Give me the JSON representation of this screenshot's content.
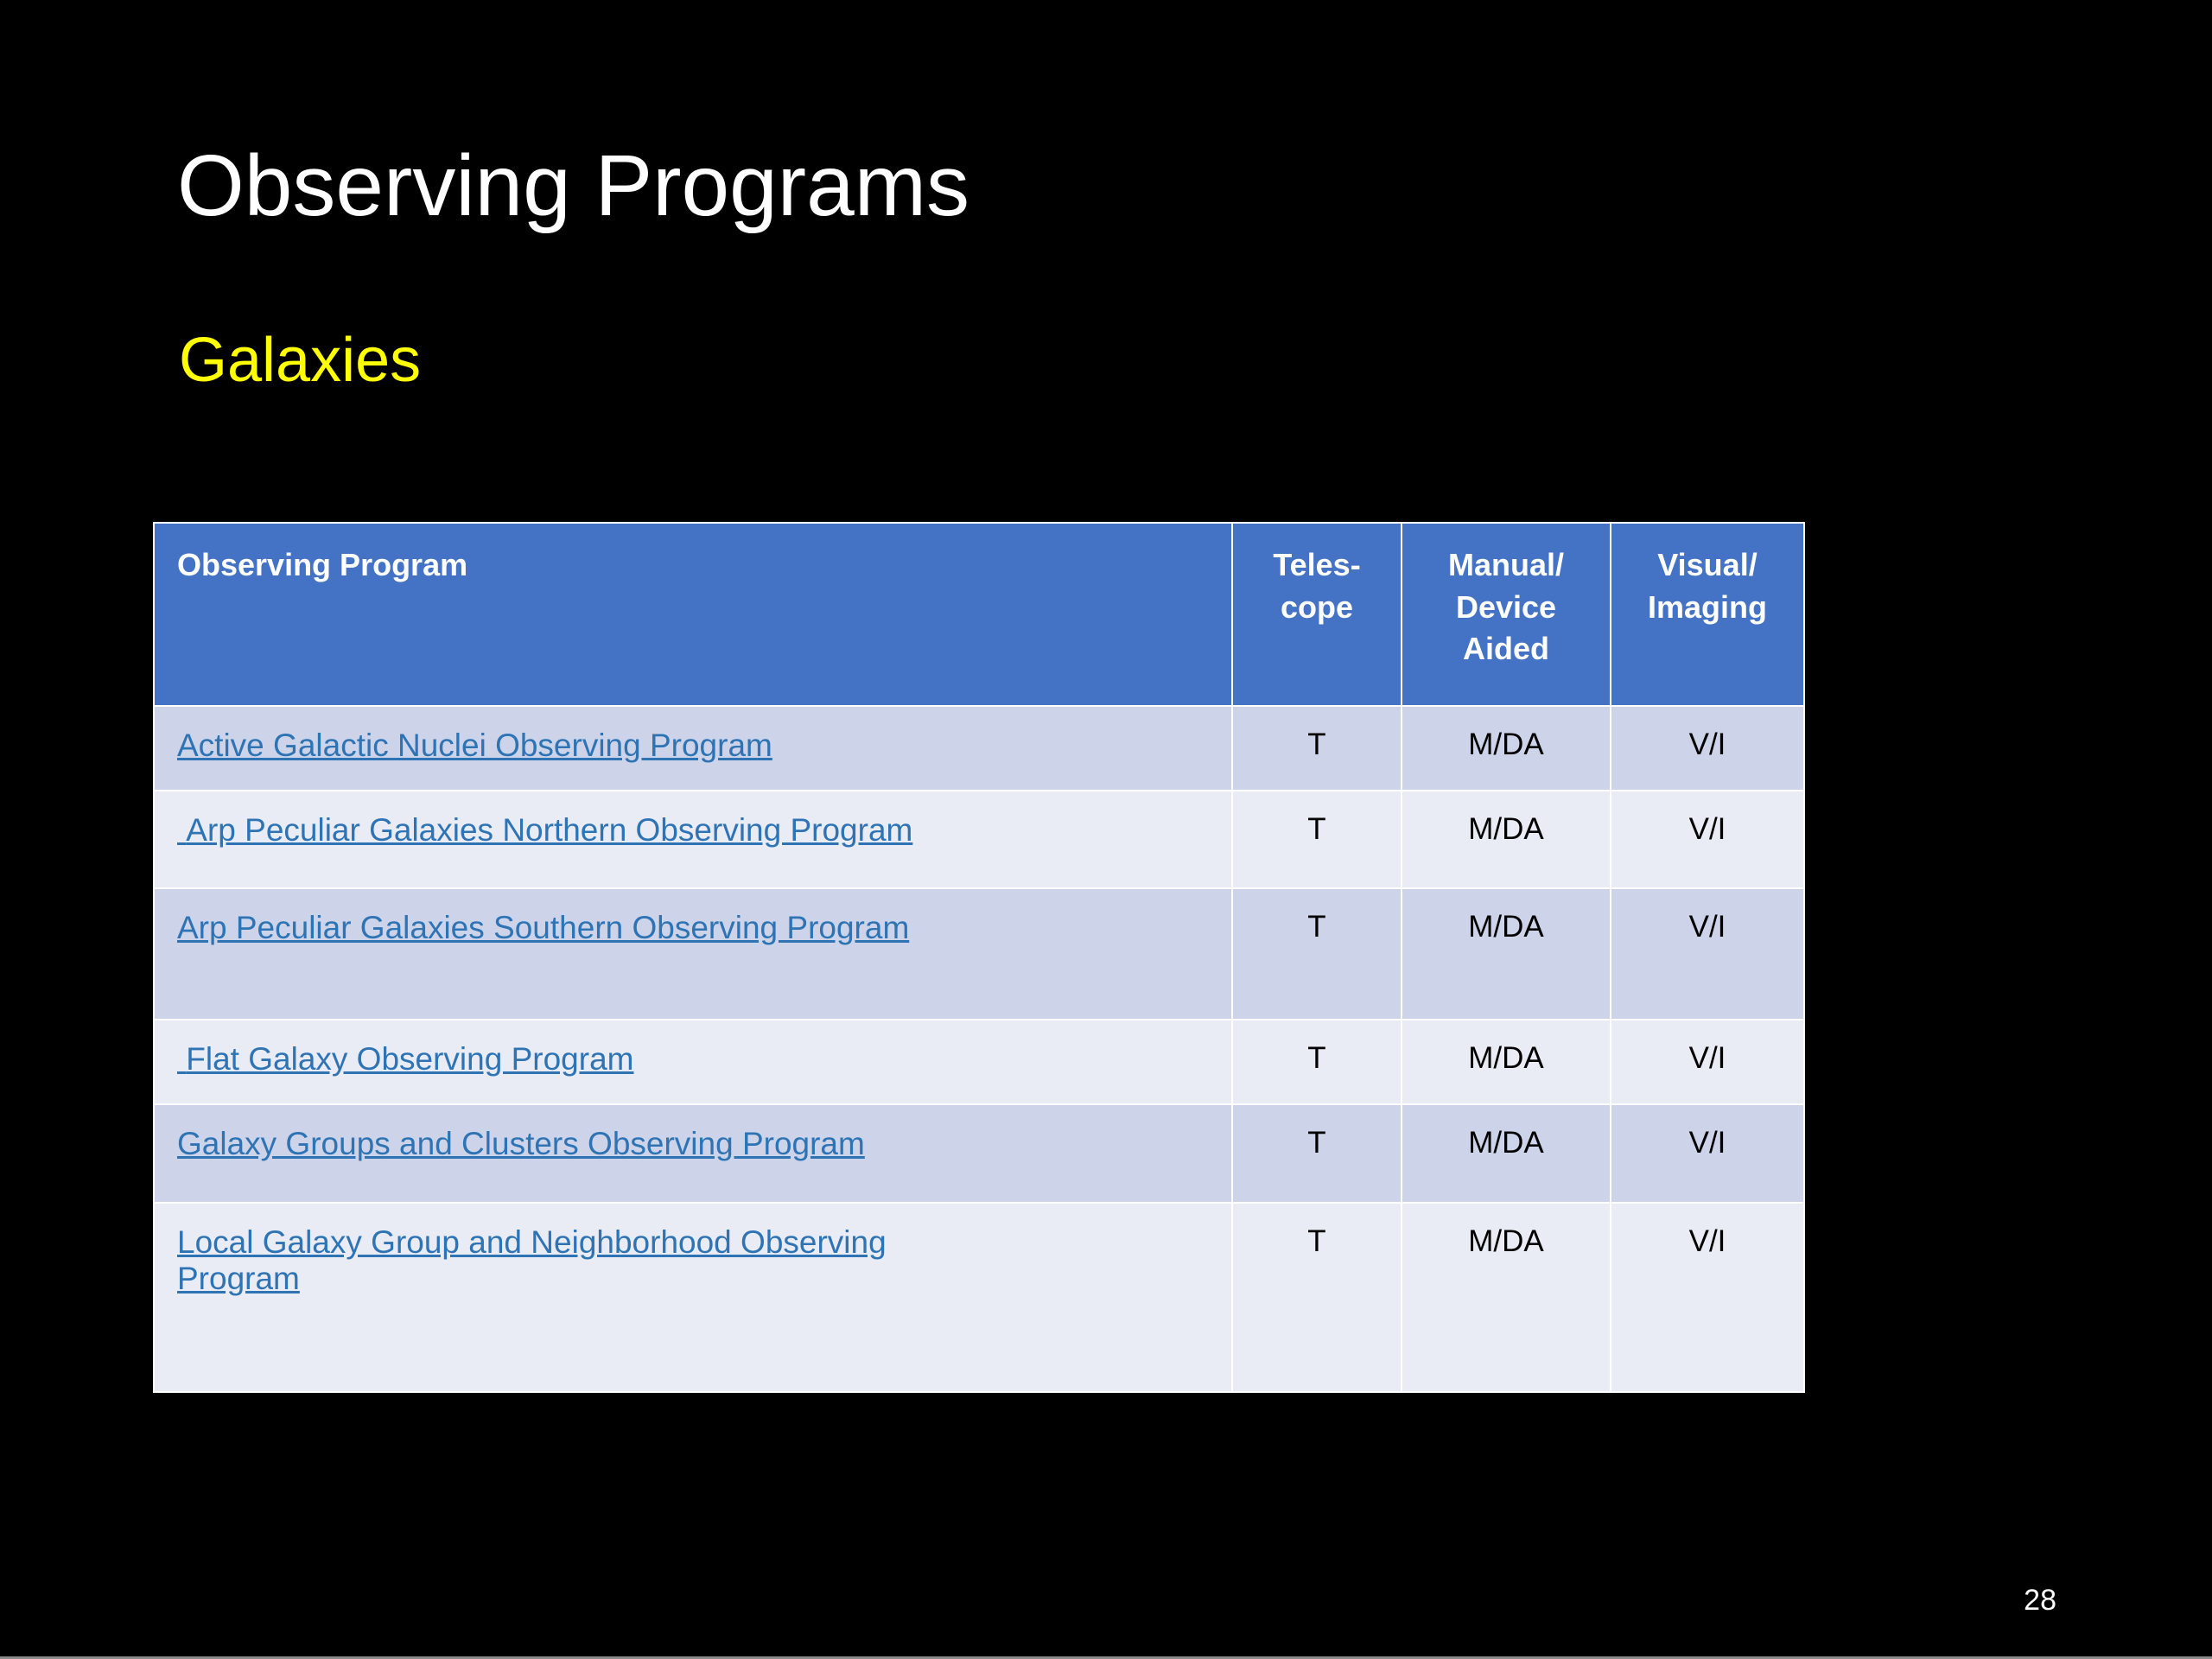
{
  "slide": {
    "title": "Observing Programs",
    "subtitle": "Galaxies",
    "page_number": "28"
  },
  "table": {
    "columns": [
      {
        "label": "Observing Program"
      },
      {
        "label": "Teles-\ncope"
      },
      {
        "label": "Manual/\nDevice\nAided"
      },
      {
        "label": "Visual/\nImaging"
      }
    ],
    "rows": [
      {
        "program": "Active Galactic Nuclei Observing Program",
        "telescope": "T",
        "manual_device": "M/DA",
        "visual_imaging": "V/I"
      },
      {
        "program": " Arp Peculiar Galaxies Northern Observing Program",
        "telescope": "T",
        "manual_device": "M/DA",
        "visual_imaging": "V/I"
      },
      {
        "program": "Arp Peculiar Galaxies Southern Observing Program",
        "telescope": "T",
        "manual_device": "M/DA",
        "visual_imaging": "V/I"
      },
      {
        "program": " Flat Galaxy Observing Program",
        "telescope": "T",
        "manual_device": "M/DA",
        "visual_imaging": "V/I"
      },
      {
        "program": "Galaxy Groups and Clusters Observing Program",
        "telescope": "T",
        "manual_device": "M/DA",
        "visual_imaging": "V/I"
      },
      {
        "program": "Local Galaxy Group and Neighborhood Observing\nProgram",
        "telescope": "T",
        "manual_device": "M/DA",
        "visual_imaging": "V/I"
      }
    ]
  },
  "colors": {
    "header_bg": "#4472C4",
    "row_dark": "#CDD4EA",
    "row_light": "#E9EBF5",
    "link": "#2E74B5",
    "subtitle": "#FFFF00",
    "background": "#000000"
  }
}
